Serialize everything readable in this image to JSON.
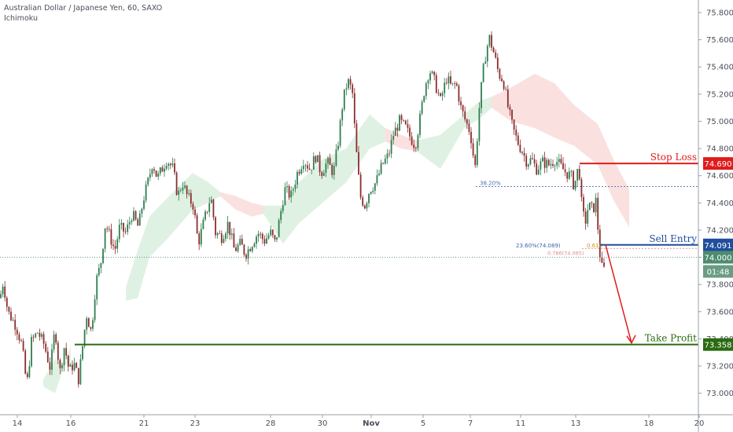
{
  "legend": {
    "symbol": "Australian Dollar / Japanese Yen, 60, SAXO",
    "indicator": "Ichimoku"
  },
  "countdown": "01:48",
  "colors": {
    "up": "#2f7d4f",
    "down": "#8a2d2d",
    "stop": "#e01b1b",
    "entry": "#1f4e9c",
    "profit": "#2a6b12",
    "cloud_bull": "#dff1e3",
    "cloud_bear": "#fbe0e0",
    "current": "#4d8c6e"
  },
  "chart_data": {
    "type": "candlestick",
    "ylim": [
      72.94,
      75.8
    ],
    "y_ticks": [
      73.0,
      73.2,
      73.4,
      73.6,
      73.8,
      74.0,
      74.2,
      74.4,
      74.6,
      74.8,
      75.0,
      75.2,
      75.4,
      75.6,
      75.8
    ],
    "x_ticks": [
      "14",
      "16",
      "21",
      "23",
      "28",
      "30",
      "Nov",
      "5",
      "7",
      "11",
      "13",
      "18",
      "20"
    ],
    "close_path": [
      [
        0,
        73.7
      ],
      [
        4,
        73.82
      ],
      [
        10,
        73.6
      ],
      [
        20,
        73.5
      ],
      [
        28,
        73.35
      ],
      [
        34,
        73.05
      ],
      [
        40,
        73.38
      ],
      [
        48,
        73.45
      ],
      [
        56,
        73.36
      ],
      [
        64,
        73.18
      ],
      [
        70,
        73.48
      ],
      [
        76,
        73.15
      ],
      [
        82,
        73.35
      ],
      [
        88,
        73.16
      ],
      [
        94,
        73.22
      ],
      [
        100,
        73.1
      ],
      [
        104,
        73.3
      ],
      [
        110,
        73.58
      ],
      [
        116,
        73.45
      ],
      [
        122,
        73.82
      ],
      [
        128,
        73.95
      ],
      [
        134,
        74.25
      ],
      [
        140,
        74.15
      ],
      [
        146,
        74.05
      ],
      [
        152,
        74.22
      ],
      [
        160,
        74.18
      ],
      [
        168,
        74.32
      ],
      [
        176,
        74.22
      ],
      [
        182,
        74.42
      ],
      [
        188,
        74.55
      ],
      [
        194,
        74.7
      ],
      [
        200,
        74.58
      ],
      [
        206,
        74.65
      ],
      [
        212,
        74.72
      ],
      [
        220,
        74.65
      ],
      [
        226,
        74.45
      ],
      [
        232,
        74.55
      ],
      [
        238,
        74.45
      ],
      [
        246,
        74.38
      ],
      [
        252,
        74.1
      ],
      [
        260,
        74.28
      ],
      [
        268,
        74.45
      ],
      [
        274,
        74.18
      ],
      [
        282,
        74.15
      ],
      [
        290,
        74.25
      ],
      [
        298,
        74.05
      ],
      [
        306,
        74.1
      ],
      [
        312,
        74.02
      ],
      [
        320,
        74.1
      ],
      [
        328,
        74.18
      ],
      [
        336,
        74.12
      ],
      [
        344,
        74.18
      ],
      [
        350,
        74.1
      ],
      [
        356,
        74.3
      ],
      [
        362,
        74.5
      ],
      [
        370,
        74.45
      ],
      [
        378,
        74.62
      ],
      [
        386,
        74.72
      ],
      [
        394,
        74.65
      ],
      [
        402,
        74.75
      ],
      [
        408,
        74.62
      ],
      [
        416,
        74.7
      ],
      [
        424,
        74.62
      ],
      [
        430,
        74.85
      ],
      [
        436,
        75.15
      ],
      [
        442,
        75.3
      ],
      [
        448,
        75.22
      ],
      [
        452,
        74.85
      ],
      [
        458,
        74.45
      ],
      [
        464,
        74.38
      ],
      [
        470,
        74.5
      ],
      [
        478,
        74.55
      ],
      [
        486,
        74.68
      ],
      [
        494,
        74.75
      ],
      [
        500,
        74.9
      ],
      [
        508,
        75.0
      ],
      [
        516,
        74.95
      ],
      [
        522,
        74.88
      ],
      [
        528,
        74.82
      ],
      [
        534,
        75.02
      ],
      [
        540,
        75.25
      ],
      [
        546,
        75.38
      ],
      [
        552,
        75.3
      ],
      [
        560,
        75.15
      ],
      [
        568,
        75.32
      ],
      [
        574,
        75.25
      ],
      [
        580,
        75.28
      ],
      [
        586,
        75.1
      ],
      [
        592,
        75.0
      ],
      [
        598,
        74.92
      ],
      [
        604,
        74.65
      ],
      [
        610,
        75.15
      ],
      [
        616,
        75.45
      ],
      [
        622,
        75.62
      ],
      [
        628,
        75.5
      ],
      [
        634,
        75.35
      ],
      [
        640,
        75.3
      ],
      [
        646,
        75.1
      ],
      [
        652,
        74.95
      ],
      [
        658,
        74.85
      ],
      [
        664,
        74.78
      ],
      [
        670,
        74.7
      ],
      [
        676,
        74.72
      ],
      [
        682,
        74.65
      ],
      [
        690,
        74.7
      ],
      [
        698,
        74.68
      ],
      [
        706,
        74.72
      ],
      [
        714,
        74.66
      ],
      [
        720,
        74.62
      ],
      [
        726,
        74.6
      ],
      [
        730,
        74.52
      ],
      [
        736,
        74.68
      ],
      [
        740,
        74.35
      ],
      [
        744,
        74.25
      ],
      [
        748,
        74.38
      ],
      [
        754,
        74.35
      ],
      [
        758,
        74.42
      ],
      [
        762,
        74.05
      ],
      [
        766,
        73.9
      ],
      [
        770,
        73.92
      ]
    ],
    "cloud": [
      {
        "type": "bull",
        "pts": [
          [
            55,
            73.05,
            73.1
          ],
          [
            70,
            73.0,
            73.25
          ],
          [
            90,
            73.35,
            73.2
          ]
        ]
      },
      {
        "type": "bull",
        "pts": [
          [
            160,
            73.68,
            73.78
          ],
          [
            175,
            73.7,
            74.05
          ],
          [
            190,
            74.0,
            74.3
          ],
          [
            215,
            74.15,
            74.45
          ],
          [
            245,
            74.35,
            74.62
          ],
          [
            265,
            74.4,
            74.55
          ],
          [
            280,
            74.45,
            74.48
          ]
        ]
      },
      {
        "type": "bear",
        "pts": [
          [
            280,
            74.45,
            74.48
          ],
          [
            300,
            74.35,
            74.45
          ],
          [
            320,
            74.3,
            74.4
          ],
          [
            335,
            74.32,
            74.38
          ]
        ]
      },
      {
        "type": "bull",
        "pts": [
          [
            335,
            74.32,
            74.38
          ],
          [
            360,
            74.1,
            74.38
          ],
          [
            380,
            74.25,
            74.55
          ],
          [
            410,
            74.4,
            74.72
          ],
          [
            440,
            74.55,
            74.8
          ],
          [
            470,
            74.8,
            75.05
          ],
          [
            490,
            74.85,
            74.95
          ]
        ]
      },
      {
        "type": "bear",
        "pts": [
          [
            490,
            74.85,
            74.95
          ],
          [
            510,
            74.8,
            74.9
          ],
          [
            530,
            74.78,
            74.86
          ]
        ]
      },
      {
        "type": "bull",
        "pts": [
          [
            530,
            74.78,
            74.86
          ],
          [
            560,
            74.65,
            74.9
          ],
          [
            590,
            74.95,
            75.05
          ],
          [
            610,
            75.02,
            75.15
          ],
          [
            625,
            75.1,
            75.18
          ]
        ]
      },
      {
        "type": "bear",
        "pts": [
          [
            625,
            75.1,
            75.18
          ],
          [
            650,
            75.0,
            75.25
          ],
          [
            680,
            74.95,
            75.35
          ],
          [
            705,
            74.88,
            75.28
          ],
          [
            730,
            74.82,
            75.12
          ],
          [
            760,
            74.68,
            74.98
          ],
          [
            780,
            74.42,
            74.72
          ],
          [
            800,
            74.22,
            74.5
          ]
        ]
      }
    ],
    "levels": {
      "stop_loss": {
        "label": "Stop Loss",
        "value": 74.69,
        "tag": "74.690"
      },
      "sell_entry": {
        "label": "Sell Entry",
        "value": 74.091,
        "tag": "74.091"
      },
      "current": {
        "value": 74.0,
        "tag": "74.000"
      },
      "take_profit": {
        "label": "Take Profit",
        "value": 73.358,
        "tag": "73.358"
      }
    },
    "fib": {
      "f382": {
        "label": "38.20%",
        "value": 74.52
      },
      "f236": {
        "label": "23.60%(74.089)",
        "value": 74.089
      },
      "f0618": {
        "label": "0.618",
        "value": 74.089
      },
      "f786": {
        "label": "0.786(74.065)",
        "value": 74.065
      }
    }
  }
}
